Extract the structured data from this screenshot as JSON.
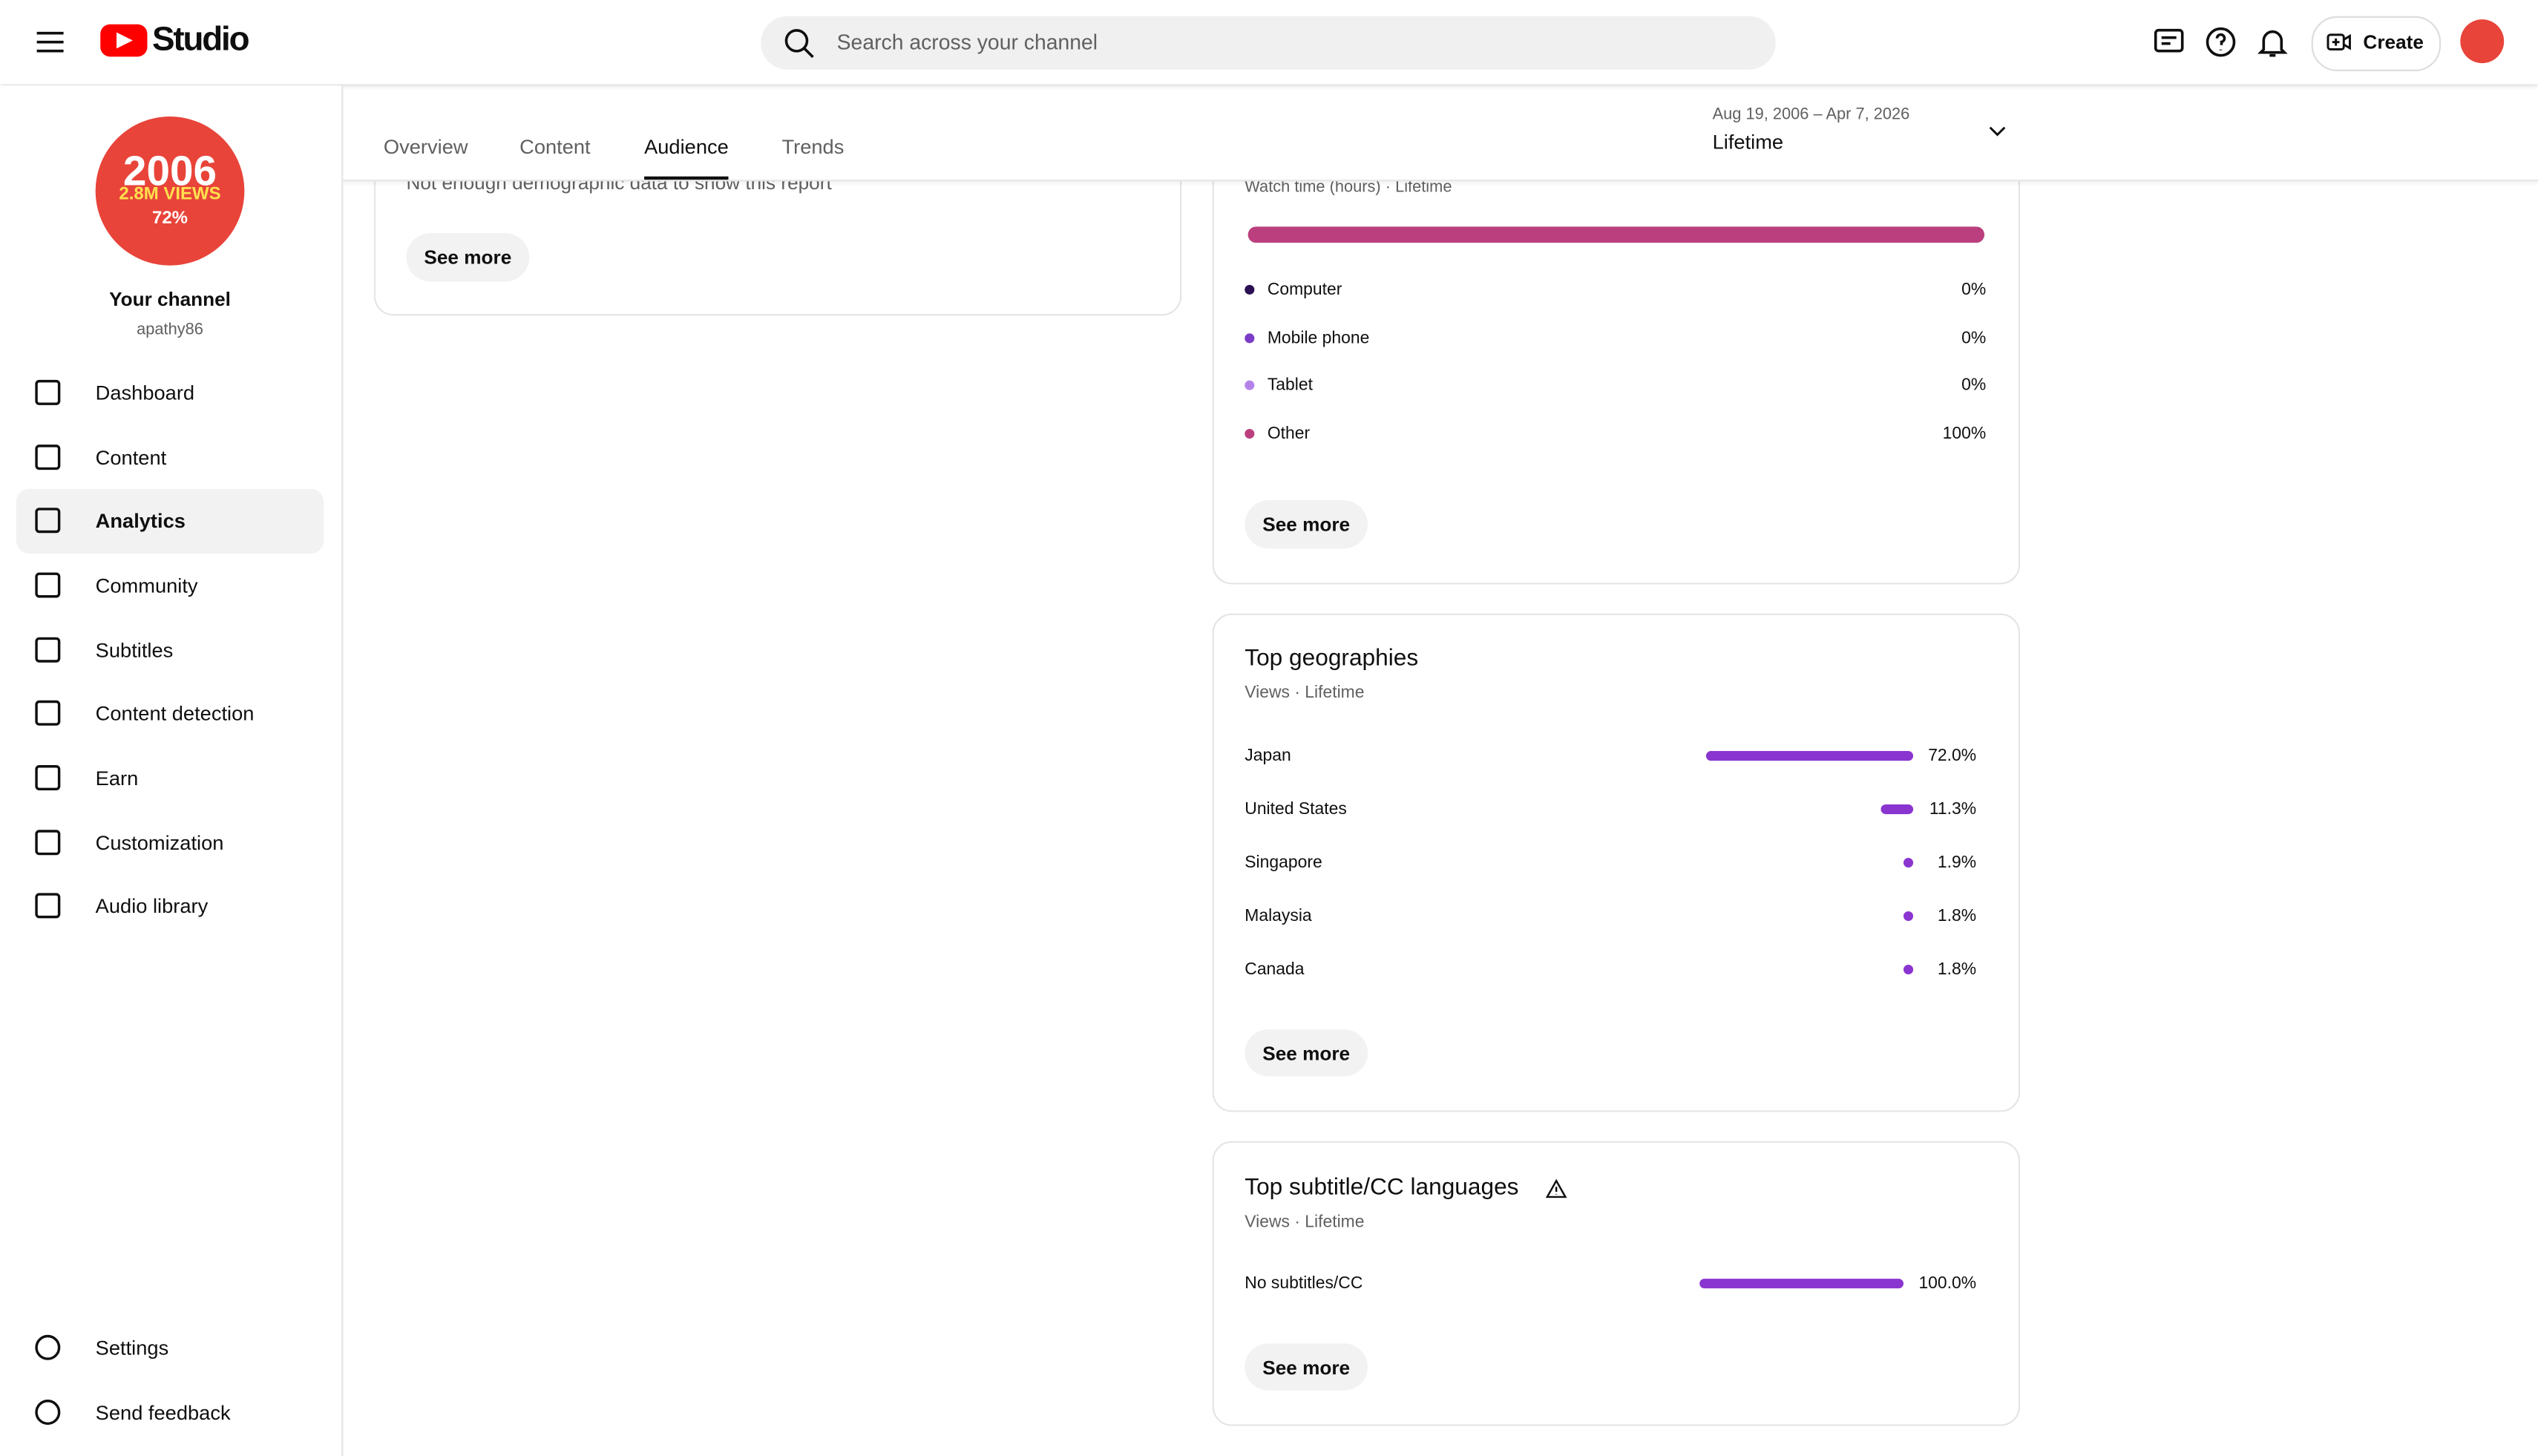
{
  "header": {
    "logo": "Studio",
    "search_placeholder": "Search across your channel",
    "create": "Create"
  },
  "channel": {
    "badge": [
      "2006",
      "2.8M VIEWS",
      "72%"
    ],
    "name": "Your channel",
    "handle": "apathy86"
  },
  "nav": [
    "Dashboard",
    "Content",
    "Analytics",
    "Community",
    "Subtitles",
    "Content detection",
    "Earn",
    "Customization",
    "Audio library"
  ],
  "nav_bottom": [
    "Settings",
    "Send feedback"
  ],
  "tabs": [
    "Overview",
    "Content",
    "Audience",
    "Trends"
  ],
  "date": {
    "range": "Aug 19, 2006 – Apr 7, 2026",
    "period": "Lifetime"
  },
  "demographics": {
    "note": "Not enough demographic data to show this report",
    "button": "See more"
  },
  "devices": {
    "subtitle": "Watch time (hours) · Lifetime",
    "items": [
      {
        "name": "Computer",
        "value": 0,
        "label": "0%",
        "color": "#2b0f52"
      },
      {
        "name": "Mobile phone",
        "value": 0,
        "label": "0%",
        "color": "#7b3cc6"
      },
      {
        "name": "Tablet",
        "value": 0,
        "label": "0%",
        "color": "#b483ea"
      },
      {
        "name": "Other",
        "value": 100,
        "label": "100%",
        "color": "#bb3f7e"
      }
    ],
    "button": "See more"
  },
  "geographies": {
    "title": "Top geographies",
    "subtitle": "Views · Lifetime",
    "rows": [
      {
        "name": "Japan",
        "value": 72.0,
        "label": "72.0%"
      },
      {
        "name": "United States",
        "value": 11.3,
        "label": "11.3%"
      },
      {
        "name": "Singapore",
        "value": 1.9,
        "label": "1.9%"
      },
      {
        "name": "Malaysia",
        "value": 1.8,
        "label": "1.8%"
      },
      {
        "name": "Canada",
        "value": 1.8,
        "label": "1.8%"
      }
    ],
    "color": "#8a35d0",
    "button": "See more"
  },
  "subtitles": {
    "title": "Top subtitle/CC languages",
    "subtitle": "Views · Lifetime",
    "rows": [
      {
        "name": "No subtitles/CC",
        "value": 100.0,
        "label": "100.0%"
      }
    ],
    "color": "#8a35d0",
    "button": "See more"
  }
}
